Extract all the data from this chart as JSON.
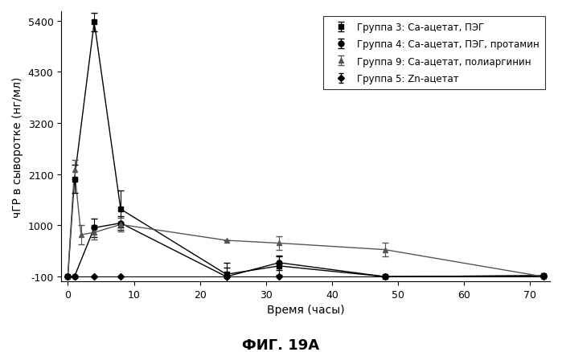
{
  "title": "ФИГ. 19А",
  "xlabel": "Время (часы)",
  "ylabel": "чГР в сыворотке (нг/мл)",
  "xlim": [
    -1,
    73
  ],
  "ylim": [
    -200,
    5600
  ],
  "yticks": [
    -100,
    1000,
    2100,
    3200,
    4300,
    5400
  ],
  "ytick_labels": [
    "-100",
    "1000",
    "2100",
    "3200",
    "4300",
    "5400"
  ],
  "xticks": [
    0,
    10,
    20,
    30,
    40,
    50,
    60,
    70
  ],
  "xtick_labels": [
    "0",
    "10",
    "20",
    "30",
    "40",
    "50",
    "60",
    "70"
  ],
  "g3_x": [
    0,
    1,
    4,
    8,
    24,
    32,
    48,
    72
  ],
  "g3_y": [
    -100,
    2000,
    5370,
    1350,
    -50,
    130,
    -100,
    -80
  ],
  "g3_err": [
    0,
    300,
    200,
    400,
    250,
    200,
    0,
    0
  ],
  "g4_x": [
    0,
    1,
    4,
    8,
    24,
    32,
    48,
    72
  ],
  "g4_y": [
    -100,
    -100,
    950,
    1050,
    -100,
    200,
    -100,
    -80
  ],
  "g4_err": [
    0,
    0,
    200,
    150,
    200,
    150,
    0,
    0
  ],
  "g9_x": [
    0,
    1,
    2,
    4,
    8,
    24,
    32,
    48,
    72
  ],
  "g9_y": [
    -100,
    2200,
    800,
    850,
    1020,
    680,
    620,
    480,
    -100
  ],
  "g9_err": [
    0,
    200,
    200,
    150,
    150,
    0,
    150,
    150,
    0
  ],
  "g5_x": [
    0,
    1,
    4,
    8,
    24,
    32,
    48,
    72
  ],
  "g5_y": [
    -100,
    -100,
    -100,
    -100,
    -100,
    -100,
    -100,
    -100
  ],
  "g5_err": [
    0,
    0,
    0,
    0,
    0,
    0,
    0,
    0
  ],
  "background_color": "#ffffff",
  "legend_fontsize": 8.5,
  "axis_fontsize": 10,
  "title_fontsize": 13,
  "tick_fontsize": 9
}
